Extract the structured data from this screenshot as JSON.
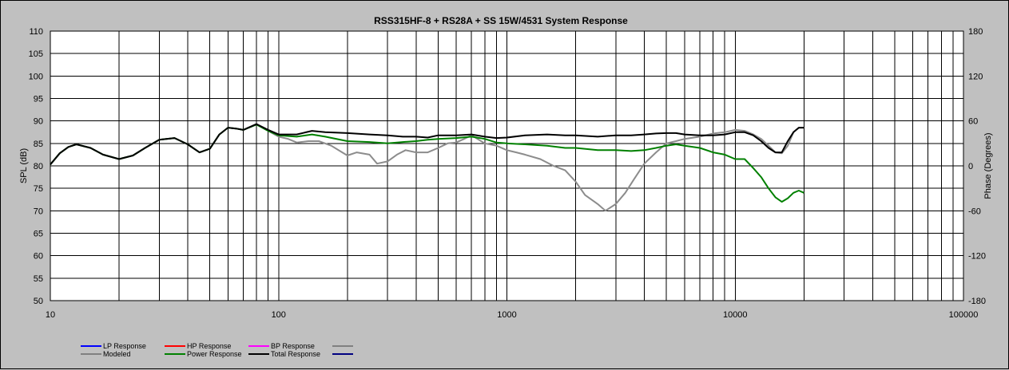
{
  "chart_data": {
    "type": "line",
    "title": "RSS315HF-8 + RS28A + SS 15W/4531  System Response",
    "xlabel": "",
    "ylabel": "SPL (dB)",
    "y2label": "Phase (Degrees)",
    "x_scale": "log",
    "xlim": [
      10,
      100000
    ],
    "ylim": [
      50,
      110
    ],
    "y2lim": [
      -180,
      180
    ],
    "grid": true,
    "x_ticks": [
      "10",
      "100",
      "1000",
      "10000",
      "100000"
    ],
    "y_ticks": [
      "50",
      "55",
      "60",
      "65",
      "70",
      "75",
      "80",
      "85",
      "90",
      "95",
      "100",
      "105",
      "110"
    ],
    "y2_ticks": [
      "-180",
      "-120",
      "-60",
      "0",
      "60",
      "120",
      "180"
    ],
    "legend": [
      {
        "label": "LP Response",
        "color": "#0000ff"
      },
      {
        "label": "HP Response",
        "color": "#ff0000"
      },
      {
        "label": "BP Response",
        "color": "#ff00ff"
      },
      {
        "label": "",
        "color": "#808080"
      },
      {
        "label": "Modeled",
        "color": "#808080"
      },
      {
        "label": "Power Response",
        "color": "#008000"
      },
      {
        "label": "Total Response",
        "color": "#000000"
      },
      {
        "label": "",
        "color": "#000080"
      }
    ],
    "series": [
      {
        "name": "Modeled",
        "color": "#8c8c8c",
        "x": [
          10,
          11,
          12,
          13,
          15,
          17,
          20,
          23,
          26,
          30,
          35,
          40,
          45,
          50,
          55,
          60,
          65,
          70,
          80,
          90,
          100,
          110,
          120,
          135,
          150,
          170,
          190,
          200,
          220,
          250,
          270,
          300,
          330,
          360,
          400,
          450,
          500,
          550,
          600,
          650,
          700,
          800,
          900,
          1000,
          1100,
          1200,
          1400,
          1600,
          1800,
          2000,
          2200,
          2500,
          2700,
          3000,
          3300,
          3600,
          4000,
          4500,
          5000,
          5500,
          6000,
          7000,
          8000,
          9000,
          10000,
          11000,
          12000,
          13000,
          14000,
          15000,
          16000,
          17000,
          18000,
          19000,
          20000
        ],
        "values": [
          80.3,
          82.8,
          84.2,
          84.8,
          84.0,
          82.5,
          81.5,
          82.3,
          84.0,
          85.8,
          86.2,
          84.8,
          83.0,
          83.8,
          87.0,
          88.5,
          88.3,
          88.0,
          89.3,
          87.8,
          86.5,
          86.0,
          85.2,
          85.5,
          85.5,
          84.5,
          83.0,
          82.3,
          83.0,
          82.5,
          80.5,
          81.0,
          82.5,
          83.5,
          83.0,
          83.0,
          84.0,
          85.0,
          85.2,
          86.0,
          86.8,
          85.0,
          84.5,
          83.5,
          83.0,
          82.5,
          81.5,
          80.0,
          79.0,
          76.5,
          73.5,
          71.5,
          70.0,
          71.5,
          74.0,
          77.0,
          80.5,
          83.0,
          85.0,
          85.5,
          86.0,
          86.5,
          87.2,
          87.5,
          88.0,
          87.8,
          87.0,
          86.0,
          84.5,
          83.0,
          82.8,
          84.5,
          87.5,
          88.5,
          88.5
        ]
      },
      {
        "name": "Power Response",
        "color": "#008000",
        "x": [
          10,
          11,
          12,
          13,
          15,
          17,
          20,
          23,
          26,
          30,
          35,
          40,
          45,
          50,
          55,
          60,
          65,
          70,
          80,
          90,
          100,
          120,
          140,
          160,
          200,
          250,
          300,
          350,
          400,
          450,
          500,
          600,
          700,
          800,
          900,
          1000,
          1200,
          1500,
          1800,
          2000,
          2500,
          3000,
          3500,
          4000,
          4500,
          5000,
          5500,
          6000,
          7000,
          8000,
          9000,
          10000,
          11000,
          12000,
          13000,
          14000,
          15000,
          16000,
          17000,
          18000,
          19000,
          20000
        ],
        "values": [
          80.3,
          82.8,
          84.2,
          84.8,
          84.0,
          82.5,
          81.5,
          82.3,
          84.0,
          85.8,
          86.2,
          84.8,
          83.0,
          83.8,
          87.0,
          88.5,
          88.3,
          88.0,
          89.2,
          87.8,
          86.8,
          86.5,
          87.0,
          86.5,
          85.5,
          85.3,
          85.0,
          85.3,
          85.5,
          85.8,
          86.0,
          86.2,
          86.5,
          86.0,
          85.2,
          85.0,
          84.8,
          84.5,
          84.0,
          84.0,
          83.5,
          83.5,
          83.3,
          83.5,
          84.0,
          84.5,
          84.8,
          84.5,
          84.0,
          83.0,
          82.5,
          81.5,
          81.5,
          79.5,
          77.5,
          75.0,
          73.0,
          72.0,
          72.8,
          74.0,
          74.5,
          74.0
        ]
      },
      {
        "name": "Total Response",
        "color": "#000000",
        "x": [
          10,
          11,
          12,
          13,
          15,
          17,
          20,
          23,
          26,
          30,
          35,
          40,
          45,
          50,
          55,
          60,
          65,
          70,
          80,
          90,
          100,
          120,
          140,
          160,
          200,
          250,
          300,
          350,
          400,
          450,
          500,
          600,
          700,
          800,
          900,
          1000,
          1200,
          1500,
          1800,
          2000,
          2500,
          3000,
          3500,
          4000,
          4500,
          5000,
          5500,
          6000,
          7000,
          8000,
          9000,
          10000,
          11000,
          12000,
          13000,
          14000,
          15000,
          16000,
          17000,
          18000,
          19000,
          20000
        ],
        "values": [
          80.3,
          82.8,
          84.2,
          84.8,
          84.0,
          82.5,
          81.5,
          82.3,
          84.0,
          85.8,
          86.2,
          84.8,
          83.0,
          83.8,
          87.0,
          88.5,
          88.3,
          88.0,
          89.3,
          88.0,
          87.0,
          87.0,
          87.8,
          87.5,
          87.3,
          87.0,
          86.8,
          86.5,
          86.5,
          86.3,
          86.8,
          86.8,
          87.0,
          86.5,
          86.2,
          86.3,
          86.8,
          87.0,
          86.8,
          86.8,
          86.5,
          86.8,
          86.8,
          87.0,
          87.2,
          87.3,
          87.3,
          87.0,
          86.8,
          86.8,
          87.0,
          87.5,
          87.5,
          86.8,
          85.5,
          84.0,
          83.0,
          83.0,
          85.5,
          87.5,
          88.5,
          88.5
        ]
      }
    ]
  }
}
